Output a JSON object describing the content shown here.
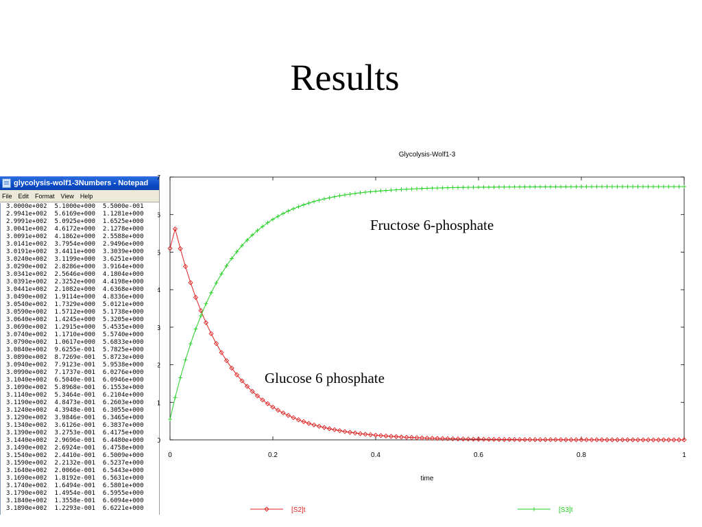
{
  "slide": {
    "title": "Results"
  },
  "notepad": {
    "title": "glycolysis-wolf1-3Numbers - Notepad",
    "menu": [
      "File",
      "Edit",
      "Format",
      "View",
      "Help"
    ],
    "rows": [
      [
        "3.0000e+002",
        "5.1000e+000",
        "5.5000e-001"
      ],
      [
        "2.9941e+002",
        "5.6169e+000",
        "1.1281e+000"
      ],
      [
        "2.9991e+002",
        "5.0925e+000",
        "1.6525e+000"
      ],
      [
        "3.0041e+002",
        "4.6172e+000",
        "2.1278e+000"
      ],
      [
        "3.0091e+002",
        "4.1862e+000",
        "2.5588e+000"
      ],
      [
        "3.0141e+002",
        "3.7954e+000",
        "2.9496e+000"
      ],
      [
        "3.0191e+002",
        "3.4411e+000",
        "3.3039e+000"
      ],
      [
        "3.0240e+002",
        "3.1199e+000",
        "3.6251e+000"
      ],
      [
        "3.0290e+002",
        "2.8286e+000",
        "3.9164e+000"
      ],
      [
        "3.0341e+002",
        "2.5646e+000",
        "4.1804e+000"
      ],
      [
        "3.0391e+002",
        "2.3252e+000",
        "4.4198e+000"
      ],
      [
        "3.0441e+002",
        "2.1082e+000",
        "4.6368e+000"
      ],
      [
        "3.0490e+002",
        "1.9114e+000",
        "4.8336e+000"
      ],
      [
        "3.0540e+002",
        "1.7329e+000",
        "5.0121e+000"
      ],
      [
        "3.0590e+002",
        "1.5712e+000",
        "5.1738e+000"
      ],
      [
        "3.0640e+002",
        "1.4245e+000",
        "5.3205e+000"
      ],
      [
        "3.0690e+002",
        "1.2915e+000",
        "5.4535e+000"
      ],
      [
        "3.0740e+002",
        "1.1710e+000",
        "5.5740e+000"
      ],
      [
        "3.0790e+002",
        "1.0617e+000",
        "5.6833e+000"
      ],
      [
        "3.0840e+002",
        "9.6255e-001",
        "5.7825e+000"
      ],
      [
        "3.0890e+002",
        "8.7269e-001",
        "5.8723e+000"
      ],
      [
        "3.0940e+002",
        "7.9123e-001",
        "5.9538e+000"
      ],
      [
        "3.0990e+002",
        "7.1737e-001",
        "6.0276e+000"
      ],
      [
        "3.1040e+002",
        "6.5040e-001",
        "6.0946e+000"
      ],
      [
        "3.1090e+002",
        "5.8968e-001",
        "6.1553e+000"
      ],
      [
        "3.1140e+002",
        "5.3464e-001",
        "6.2104e+000"
      ],
      [
        "3.1190e+002",
        "4.8473e-001",
        "6.2603e+000"
      ],
      [
        "3.1240e+002",
        "4.3948e-001",
        "6.3055e+000"
      ],
      [
        "3.1290e+002",
        "3.9846e-001",
        "6.3465e+000"
      ],
      [
        "3.1340e+002",
        "3.6126e-001",
        "6.3837e+000"
      ],
      [
        "3.1390e+002",
        "3.2753e-001",
        "6.4175e+000"
      ],
      [
        "3.1440e+002",
        "2.9696e-001",
        "6.4480e+000"
      ],
      [
        "3.1490e+002",
        "2.6924e-001",
        "6.4758e+000"
      ],
      [
        "3.1540e+002",
        "2.4410e-001",
        "6.5009e+000"
      ],
      [
        "3.1590e+002",
        "2.2132e-001",
        "6.5237e+000"
      ],
      [
        "3.1640e+002",
        "2.0066e-001",
        "6.5443e+000"
      ],
      [
        "3.1690e+002",
        "1.8192e-001",
        "6.5631e+000"
      ],
      [
        "3.1740e+002",
        "1.6494e-001",
        "6.5801e+000"
      ],
      [
        "3.1790e+002",
        "1.4954e-001",
        "6.5955e+000"
      ],
      [
        "3.1840e+002",
        "1.3558e-001",
        "6.6094e+000"
      ],
      [
        "3.1890e+002",
        "1.2293e-001",
        "6.6221e+000"
      ]
    ]
  },
  "chart_data": {
    "type": "line",
    "title": "Glycolysis-Wolf1-3",
    "xlabel": "time",
    "ylabel": "",
    "xlim": [
      0,
      1
    ],
    "ylim": [
      0,
      7
    ],
    "xticks": [
      "0",
      "0.2",
      "0.4",
      "0.6",
      "0.8",
      "1"
    ],
    "yticks": [
      "0",
      "1",
      "2",
      "3",
      "4",
      "5",
      "6",
      "7"
    ],
    "grid": false,
    "legend_placement": "bottom",
    "annotations": [
      {
        "text": "Fructose 6-phosphate",
        "series": "[S3]t"
      },
      {
        "text": "Glucose 6 phosphate",
        "series": "[S2]t"
      }
    ],
    "series": [
      {
        "name": "[S2]t",
        "color": "#e02020",
        "marker": "diamond",
        "x": [
          0,
          0.01,
          0.02,
          0.03,
          0.04,
          0.05,
          0.06,
          0.07,
          0.08,
          0.09,
          0.1,
          0.11,
          0.12,
          0.13,
          0.14,
          0.15,
          0.16,
          0.17,
          0.18,
          0.19,
          0.2,
          0.21,
          0.22,
          0.23,
          0.24,
          0.25,
          0.26,
          0.27,
          0.28,
          0.29,
          0.3,
          0.31,
          0.32,
          0.33,
          0.34,
          0.35,
          0.36,
          0.37,
          0.38,
          0.39,
          0.4,
          0.45,
          0.5,
          0.55,
          0.6,
          0.65,
          0.7,
          0.75,
          0.8,
          0.85,
          0.9,
          0.95,
          1.0
        ],
        "y": [
          5.1,
          5.617,
          5.093,
          4.617,
          4.186,
          3.795,
          3.441,
          3.12,
          2.829,
          2.565,
          2.325,
          2.108,
          1.911,
          1.733,
          1.571,
          1.425,
          1.292,
          1.171,
          1.062,
          0.963,
          0.873,
          0.791,
          0.717,
          0.65,
          0.59,
          0.535,
          0.485,
          0.439,
          0.398,
          0.361,
          0.328,
          0.297,
          0.269,
          0.244,
          0.221,
          0.201,
          0.182,
          0.165,
          0.15,
          0.136,
          0.123,
          0.075,
          0.046,
          0.028,
          0.017,
          0.01,
          0.006,
          0.004,
          0.002,
          0.001,
          0.001,
          0.0,
          0.0
        ]
      },
      {
        "name": "[S3]t",
        "color": "#20d020",
        "marker": "plus",
        "x": [
          0,
          0.01,
          0.02,
          0.03,
          0.04,
          0.05,
          0.06,
          0.07,
          0.08,
          0.09,
          0.1,
          0.11,
          0.12,
          0.13,
          0.14,
          0.15,
          0.16,
          0.17,
          0.18,
          0.19,
          0.2,
          0.21,
          0.22,
          0.23,
          0.24,
          0.25,
          0.26,
          0.27,
          0.28,
          0.29,
          0.3,
          0.31,
          0.32,
          0.33,
          0.34,
          0.35,
          0.36,
          0.37,
          0.38,
          0.39,
          0.4,
          0.45,
          0.5,
          0.55,
          0.6,
          0.65,
          0.7,
          0.75,
          0.8,
          0.85,
          0.9,
          0.95,
          1.0
        ],
        "y": [
          0.55,
          1.128,
          1.653,
          2.128,
          2.559,
          2.95,
          3.304,
          3.625,
          3.916,
          4.18,
          4.42,
          4.637,
          4.834,
          5.012,
          5.174,
          5.321,
          5.454,
          5.574,
          5.683,
          5.783,
          5.872,
          5.954,
          6.028,
          6.095,
          6.155,
          6.21,
          6.26,
          6.306,
          6.347,
          6.384,
          6.418,
          6.448,
          6.476,
          6.501,
          6.524,
          6.544,
          6.563,
          6.58,
          6.596,
          6.609,
          6.622,
          6.67,
          6.7,
          6.718,
          6.728,
          6.735,
          6.739,
          6.741,
          6.743,
          6.744,
          6.744,
          6.745,
          6.745
        ]
      }
    ]
  }
}
